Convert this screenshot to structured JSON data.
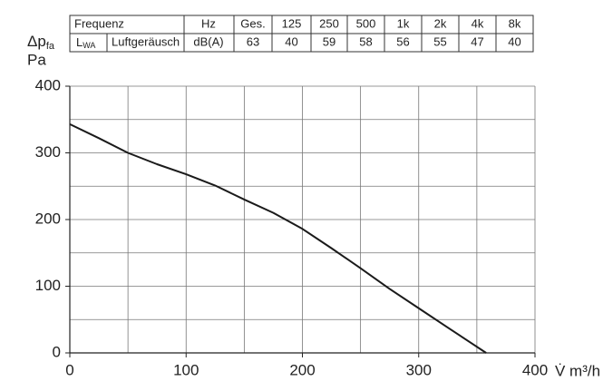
{
  "table": {
    "header": {
      "label": "Frequenz",
      "unit": "Hz",
      "bands": [
        "Ges.",
        "125",
        "250",
        "500",
        "1k",
        "2k",
        "4k",
        "8k"
      ]
    },
    "row": {
      "symbol": "L",
      "symbol_sub": "WA",
      "name": "Luftgeräusch",
      "unit": "dB(A)",
      "values": [
        63,
        40,
        59,
        58,
        56,
        55,
        47,
        40
      ]
    },
    "highlight_color": "#a3213f"
  },
  "chart_data": {
    "type": "line",
    "ylabel": "Δp",
    "ylabel_sub": "fa",
    "yunit": "Pa",
    "xlabel": "V̇ m³/h",
    "x": [
      0,
      25,
      50,
      75,
      100,
      125,
      150,
      175,
      200,
      225,
      250,
      275,
      300,
      325,
      358
    ],
    "series": [
      {
        "color": "#1a1a1a",
        "values": [
          343,
          322,
          300,
          283,
          268,
          251,
          230,
          210,
          186,
          157,
          127,
          96,
          67,
          38,
          0
        ]
      }
    ],
    "xlim": [
      0,
      400
    ],
    "ylim": [
      0,
      400
    ],
    "xticks": [
      0,
      100,
      200,
      300,
      400
    ],
    "yticks": [
      0,
      100,
      200,
      300,
      400
    ],
    "xgrid": [
      50,
      100,
      150,
      200,
      250,
      300,
      350,
      400
    ],
    "ygrid": [
      50,
      100,
      150,
      200,
      250,
      300,
      350,
      400
    ],
    "grid": true
  }
}
